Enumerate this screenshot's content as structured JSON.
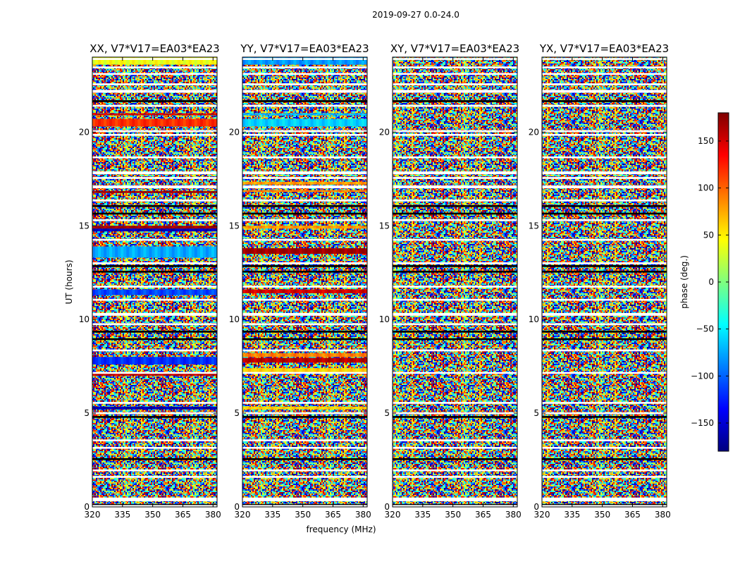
{
  "suptitle": "2019-09-27 0.0-24.0",
  "colors": {
    "jet": [
      "#00007f",
      "#0000ff",
      "#007fff",
      "#00ffff",
      "#7fff7f",
      "#ffff00",
      "#ff7f00",
      "#ff0000",
      "#7f0000"
    ],
    "flagged": "#ffffff",
    "frame": "#000000"
  },
  "chart_data": {
    "type": "heatmap",
    "xlabel": "frequency (MHz)",
    "ylabel": "UT (hours)",
    "xlim": [
      320,
      382
    ],
    "ylim": [
      0,
      24
    ],
    "xticks": [
      320,
      335,
      350,
      365,
      380
    ],
    "yticks": [
      0,
      5,
      10,
      15,
      20
    ],
    "colorbar": {
      "label": "phase (deg.)",
      "range": [
        -180,
        180
      ],
      "ticks": [
        -150,
        -100,
        -50,
        0,
        50,
        100,
        150
      ],
      "tick_labels": [
        "−150",
        "−100",
        "−50",
        "0",
        "50",
        "100",
        "150"
      ]
    },
    "panels": [
      {
        "title": "XX, V7*V17=EA03*EA23",
        "coherent_bands": [
          {
            "ut": [
              23.6,
              24.0
            ],
            "phase": 40
          },
          {
            "ut": [
              20.9,
              21.0
            ],
            "phase": 150
          },
          {
            "ut": [
              20.3,
              20.7
            ],
            "phase": 120
          },
          {
            "ut": [
              16.75,
              16.85
            ],
            "phase": 170
          },
          {
            "ut": [
              14.85,
              15.0
            ],
            "phase": 170
          },
          {
            "ut": [
              14.7,
              14.85
            ],
            "phase": -160
          },
          {
            "ut": [
              13.3,
              13.9
            ],
            "phase": -75
          },
          {
            "ut": [
              11.3,
              11.6
            ],
            "phase": -110
          },
          {
            "ut": [
              7.6,
              8.0
            ],
            "phase": -120
          },
          {
            "ut": [
              7.0,
              7.2
            ],
            "phase": 160
          },
          {
            "ut": [
              5.2,
              5.35
            ],
            "phase": -165
          }
        ]
      },
      {
        "title": "YY, V7*V17=EA03*EA23",
        "coherent_bands": [
          {
            "ut": [
              23.6,
              24.0
            ],
            "phase": -80
          },
          {
            "ut": [
              20.9,
              21.0
            ],
            "phase": -70
          },
          {
            "ut": [
              20.3,
              20.7
            ],
            "phase": -60
          },
          {
            "ut": [
              17.2,
              17.35
            ],
            "phase": 80
          },
          {
            "ut": [
              16.8,
              16.9
            ],
            "phase": 90
          },
          {
            "ut": [
              14.85,
              15.0
            ],
            "phase": 80
          },
          {
            "ut": [
              13.5,
              13.8
            ],
            "phase": 170
          },
          {
            "ut": [
              11.4,
              11.6
            ],
            "phase": 150
          },
          {
            "ut": [
              8.0,
              8.2
            ],
            "phase": 90
          },
          {
            "ut": [
              7.7,
              7.95
            ],
            "phase": 160
          },
          {
            "ut": [
              7.2,
              7.4
            ],
            "phase": 60
          },
          {
            "ut": [
              5.2,
              5.35
            ],
            "phase": 60
          }
        ]
      },
      {
        "title": "XY, V7*V17=EA03*EA23",
        "coherent_bands": []
      },
      {
        "title": "YX, V7*V17=EA03*EA23",
        "coherent_bands": []
      }
    ],
    "flagged_ut_ranges": [
      [
        0.0,
        0.1
      ],
      [
        0.3,
        0.5
      ],
      [
        1.55,
        1.65
      ],
      [
        1.9,
        2.0
      ],
      [
        3.1,
        3.2
      ],
      [
        3.5,
        3.6
      ],
      [
        4.95,
        5.05
      ],
      [
        5.5,
        5.6
      ],
      [
        7.1,
        7.2
      ],
      [
        8.3,
        8.4
      ],
      [
        9.7,
        9.8
      ],
      [
        10.2,
        10.35
      ],
      [
        11.0,
        11.1
      ],
      [
        11.7,
        11.8
      ],
      [
        12.95,
        13.05
      ],
      [
        14.2,
        14.3
      ],
      [
        15.25,
        15.35
      ],
      [
        16.3,
        16.4
      ],
      [
        17.0,
        17.15
      ],
      [
        17.5,
        17.6
      ],
      [
        17.75,
        17.9
      ],
      [
        18.6,
        18.7
      ],
      [
        19.8,
        19.9
      ],
      [
        20.0,
        20.1
      ],
      [
        21.35,
        21.45
      ],
      [
        22.1,
        22.25
      ],
      [
        22.5,
        22.6
      ],
      [
        23.05,
        23.15
      ],
      [
        23.4,
        23.5
      ],
      [
        23.85,
        23.95
      ]
    ],
    "dense_black_ut_ranges": [
      [
        0.05,
        0.15
      ],
      [
        2.5,
        2.6
      ],
      [
        4.75,
        4.85
      ],
      [
        8.9,
        9.0
      ],
      [
        9.3,
        9.4
      ],
      [
        12.5,
        12.6
      ],
      [
        12.8,
        12.9
      ],
      [
        15.6,
        15.7
      ],
      [
        16.0,
        16.1
      ],
      [
        21.6,
        21.7
      ]
    ]
  }
}
